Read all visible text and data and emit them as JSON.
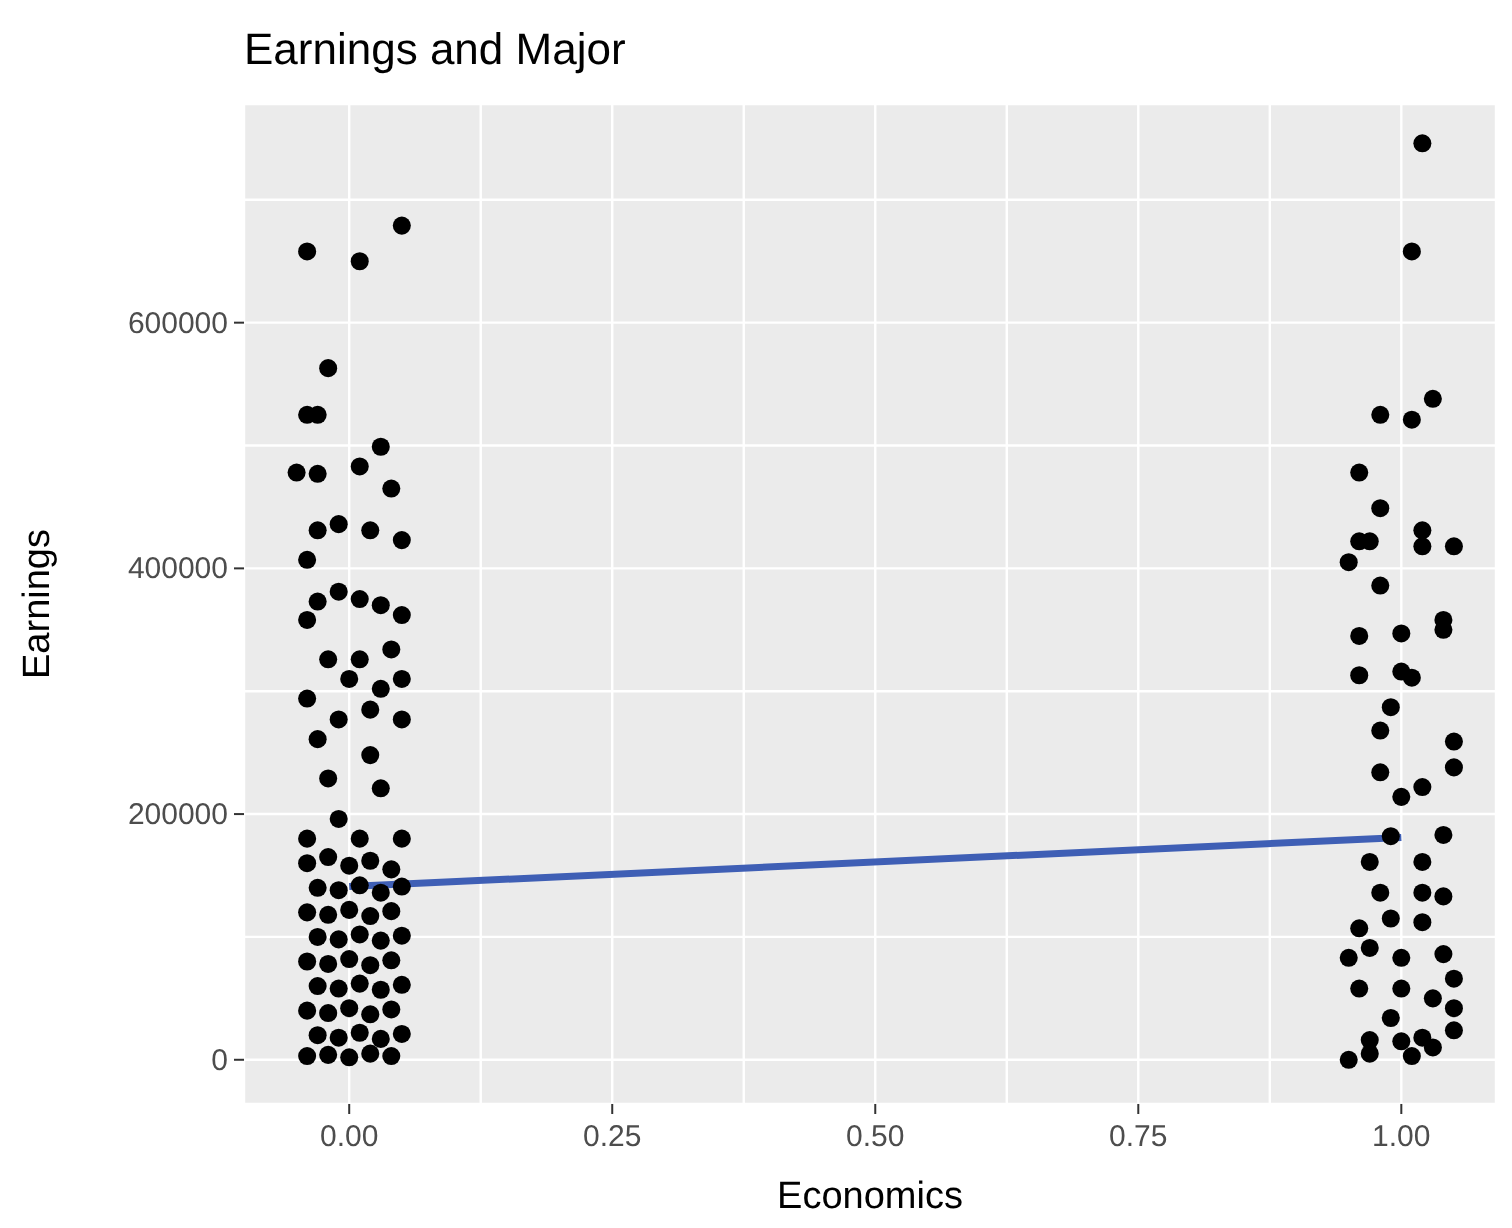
{
  "chart_data": {
    "type": "scatter",
    "title": "Earnings and Major",
    "xlabel": "Economics",
    "ylabel": "Earnings",
    "xlim": [
      -0.1,
      1.09
    ],
    "ylim": [
      -36000,
      778000
    ],
    "xticks": [
      {
        "value": 0,
        "label": "0.00"
      },
      {
        "value": 0.125,
        "label": null
      },
      {
        "value": 0.25,
        "label": "0.25"
      },
      {
        "value": 0.375,
        "label": null
      },
      {
        "value": 0.5,
        "label": "0.50"
      },
      {
        "value": 0.625,
        "label": null
      },
      {
        "value": 0.75,
        "label": "0.75"
      },
      {
        "value": 0.875,
        "label": null
      },
      {
        "value": 1,
        "label": "1.00"
      }
    ],
    "yticks": [
      0,
      {
        "value": 100000,
        "label": null
      },
      200000,
      {
        "value": 300000,
        "label": null
      },
      400000,
      {
        "value": 500000,
        "label": null
      },
      600000,
      {
        "value": 700000,
        "label": null
      }
    ],
    "grid": true,
    "series": [
      {
        "color": "#000000",
        "marker": "circle",
        "x": [
          -0.04,
          0.01,
          0.05,
          -0.02,
          -0.04,
          -0.03,
          -0.05,
          -0.03,
          0.01,
          0.03,
          0.04,
          -0.03,
          -0.01,
          0.02,
          0.05,
          -0.04,
          -0.03,
          -0.01,
          0.01,
          0.03,
          -0.04,
          0.05,
          0.04,
          -0.02,
          0.01,
          -0.04,
          0.0,
          0.03,
          0.05,
          -0.03,
          -0.01,
          0.02,
          0.05,
          -0.02,
          0.02,
          -0.01,
          0.03,
          -0.04,
          0.01,
          0.05,
          -0.04,
          -0.02,
          0.0,
          0.02,
          0.04,
          -0.03,
          -0.01,
          0.01,
          0.03,
          0.05,
          -0.04,
          -0.02,
          0.0,
          0.02,
          0.04,
          -0.03,
          -0.01,
          0.01,
          0.03,
          0.05,
          -0.04,
          -0.02,
          0.0,
          0.02,
          0.04,
          -0.03,
          -0.01,
          0.01,
          0.03,
          0.05,
          -0.04,
          -0.02,
          0.0,
          0.02,
          0.04,
          -0.03,
          -0.01,
          0.01,
          0.03,
          0.05,
          -0.04,
          -0.02,
          0.0,
          0.02,
          0.04,
          1.02,
          1.01,
          0.98,
          1.01,
          1.03,
          0.96,
          0.98,
          0.96,
          0.97,
          0.95,
          1.02,
          1.02,
          1.05,
          0.98,
          0.96,
          1.0,
          1.04,
          1.04,
          0.96,
          1.0,
          1.01,
          0.99,
          0.98,
          1.05,
          1.05,
          0.98,
          1.02,
          1.0,
          1.04,
          0.99,
          0.97,
          1.02,
          0.98,
          1.02,
          1.04,
          0.96,
          1.02,
          0.99,
          0.97,
          1.0,
          1.04,
          0.95,
          0.96,
          1.0,
          1.05,
          1.03,
          0.99,
          1.05,
          0.97,
          1.0,
          1.02,
          0.97,
          1.01,
          1.03,
          1.05,
          0.95
        ],
        "values": [
          658000,
          650000,
          679000,
          563000,
          525000,
          525000,
          478000,
          477000,
          483000,
          499000,
          465000,
          431000,
          436000,
          431000,
          423000,
          407000,
          373000,
          381000,
          375000,
          370000,
          358000,
          362000,
          334000,
          326000,
          326000,
          294000,
          310000,
          302000,
          310000,
          261000,
          277000,
          285000,
          277000,
          229000,
          248000,
          196000,
          221000,
          180000,
          180000,
          180000,
          160000,
          165000,
          158000,
          162000,
          155000,
          140000,
          138000,
          142000,
          136000,
          141000,
          120000,
          118000,
          122000,
          117000,
          121000,
          100000,
          98000,
          102000,
          97000,
          101000,
          80000,
          78000,
          82000,
          77000,
          81000,
          60000,
          58000,
          62000,
          57000,
          61000,
          40000,
          38000,
          42000,
          37000,
          41000,
          20000,
          18000,
          22000,
          17000,
          21000,
          3000,
          4000,
          2000,
          5000,
          3000,
          746000,
          658000,
          525000,
          521000,
          538000,
          478000,
          449000,
          422000,
          422000,
          405000,
          431000,
          418000,
          418000,
          386000,
          345000,
          347000,
          358000,
          350000,
          313000,
          316000,
          311000,
          287000,
          268000,
          259000,
          238000,
          234000,
          222000,
          214000,
          183000,
          182000,
          161000,
          161000,
          136000,
          136000,
          133000,
          107000,
          112000,
          115000,
          91000,
          83000,
          86000,
          83000,
          58000,
          58000,
          66000,
          50000,
          34000,
          42000,
          16000,
          15000,
          18000,
          5000,
          3000,
          10000,
          24000,
          0
        ]
      },
      {
        "type": "line",
        "marker": "none",
        "color": "#3f5fb5",
        "x": [
          0,
          1
        ],
        "values": [
          141000,
          181000
        ]
      }
    ]
  }
}
